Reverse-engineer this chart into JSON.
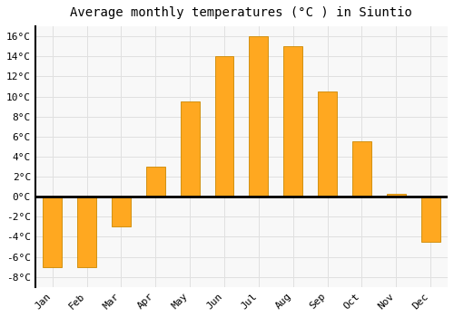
{
  "title": "Average monthly temperatures (°C ) in Siuntio",
  "months": [
    "Jan",
    "Feb",
    "Mar",
    "Apr",
    "May",
    "Jun",
    "Jul",
    "Aug",
    "Sep",
    "Oct",
    "Nov",
    "Dec"
  ],
  "temperatures": [
    -7.0,
    -7.0,
    -3.0,
    3.0,
    9.5,
    14.0,
    16.0,
    15.0,
    10.5,
    5.5,
    0.3,
    -4.5
  ],
  "bar_color": "#FFA820",
  "bar_edge_color": "#CC8800",
  "ylim": [
    -9,
    17
  ],
  "yticks": [
    -8,
    -6,
    -4,
    -2,
    0,
    2,
    4,
    6,
    8,
    10,
    12,
    14,
    16
  ],
  "grid_color": "#e0e0e0",
  "background_color": "#ffffff",
  "plot_bg_color": "#f8f8f8",
  "title_fontsize": 10,
  "tick_fontsize": 8,
  "zero_line_color": "#000000",
  "bar_width": 0.55
}
